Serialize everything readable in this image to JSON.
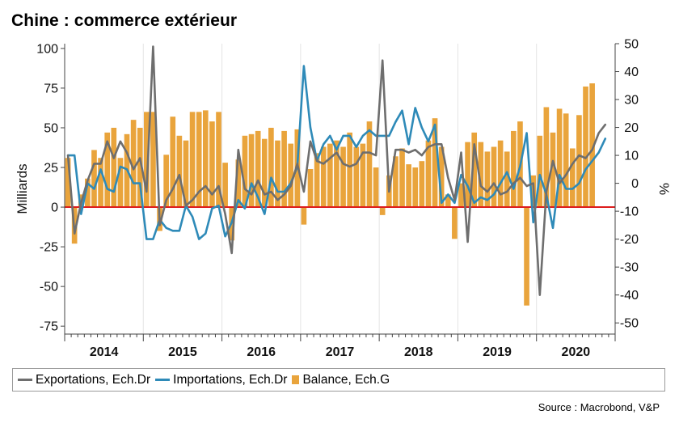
{
  "title": "Chine : commerce extérieur",
  "source": "Source : Macrobond, V&P",
  "colors": {
    "exports": "#6e6e6e",
    "imports": "#2e8ab8",
    "balance": "#e9a43c",
    "zero": "#dd1c1c"
  },
  "legend": {
    "exports": "Exportations, Ech.Dr",
    "imports": "Importations, Ech.Dr",
    "balance": "Balance, Ech.G"
  },
  "chart_data": {
    "type": "bar+line",
    "title": "Chine : commerce extérieur",
    "ylabel": "Milliards",
    "ylabel_right": "%",
    "ylim_left": [
      -80,
      103
    ],
    "ylim_right": [
      -54,
      50
    ],
    "yticks_left": [
      100,
      75,
      50,
      25,
      0,
      -25,
      -50,
      -75
    ],
    "yticks_right": [
      50,
      40,
      30,
      20,
      10,
      0,
      -10,
      -20,
      -30,
      -40,
      -50
    ],
    "year_labels": [
      "2014",
      "2015",
      "2016",
      "2017",
      "2018",
      "2019",
      "2020"
    ],
    "start_month": "2014-01",
    "months": 84,
    "series": [
      {
        "name": "Balance, Ech.G",
        "axis": "left",
        "kind": "bar",
        "values": [
          31,
          -23,
          8,
          18,
          36,
          31,
          47,
          50,
          31,
          46,
          55,
          50,
          60,
          60,
          -15,
          33,
          57,
          45,
          42,
          60,
          60,
          61,
          54,
          60,
          28,
          -21,
          30,
          45,
          46,
          48,
          43,
          50,
          42,
          48,
          40,
          49,
          -11,
          24,
          34,
          38,
          40,
          42,
          38,
          47,
          38,
          40,
          54,
          25,
          -5,
          20,
          32,
          37,
          27,
          25,
          29,
          42,
          56,
          38,
          8,
          -20,
          15,
          41,
          47,
          41,
          35,
          38,
          42,
          35,
          48,
          54,
          -62,
          20,
          45,
          63,
          47,
          62,
          59,
          37,
          58,
          76,
          78
        ],
        "note": "values listed monthly from 2014-01 onward"
      },
      {
        "name": "Exportations, Ech.Dr",
        "axis": "right",
        "kind": "line",
        "values": [
          10,
          -18,
          -7,
          1,
          7,
          7,
          15,
          9,
          15,
          11,
          5,
          9,
          -3,
          49,
          -15,
          -6,
          -2,
          3,
          -8,
          -6,
          -3,
          -1,
          -4,
          -1,
          -11,
          -25,
          12,
          -2,
          -4,
          1,
          -4,
          -3,
          -6,
          -4,
          -1,
          7,
          -3,
          15,
          8,
          7,
          9,
          11,
          7,
          6,
          7,
          11,
          11,
          10,
          44,
          -3,
          12,
          12,
          11,
          12,
          10,
          13,
          14,
          14,
          2,
          -6,
          11,
          -21,
          14,
          -1,
          -3,
          0,
          -4,
          -3,
          0,
          2,
          -1,
          0,
          -40,
          -3,
          8,
          0,
          3,
          7,
          10,
          9,
          12,
          18,
          21
        ],
        "note": "values listed monthly from 2014-01 onward"
      },
      {
        "name": "Importations, Ech.Dr",
        "axis": "right",
        "kind": "line",
        "values": [
          10,
          10,
          -11,
          0,
          -2,
          5,
          -2,
          -3,
          6,
          5,
          0,
          0,
          -20,
          -20,
          -13,
          -16,
          -17,
          -17,
          -8,
          -12,
          -20,
          -18,
          -9,
          -8,
          -19,
          -14,
          -6,
          -9,
          0,
          -5,
          -11,
          2,
          -3,
          -3,
          0,
          6,
          42,
          20,
          8,
          14,
          17,
          12,
          17,
          17,
          13,
          17,
          19,
          17,
          17,
          17,
          22,
          26,
          14,
          27,
          20,
          15,
          21,
          -7,
          -4,
          -7,
          3,
          -1,
          -7,
          -5,
          -6,
          -4,
          0,
          4,
          -2,
          6,
          18,
          -14,
          3,
          -4,
          -16,
          3,
          -2,
          -2,
          0,
          5,
          8,
          11,
          16
        ],
        "note": "values listed monthly from 2014-01 onward"
      }
    ]
  }
}
